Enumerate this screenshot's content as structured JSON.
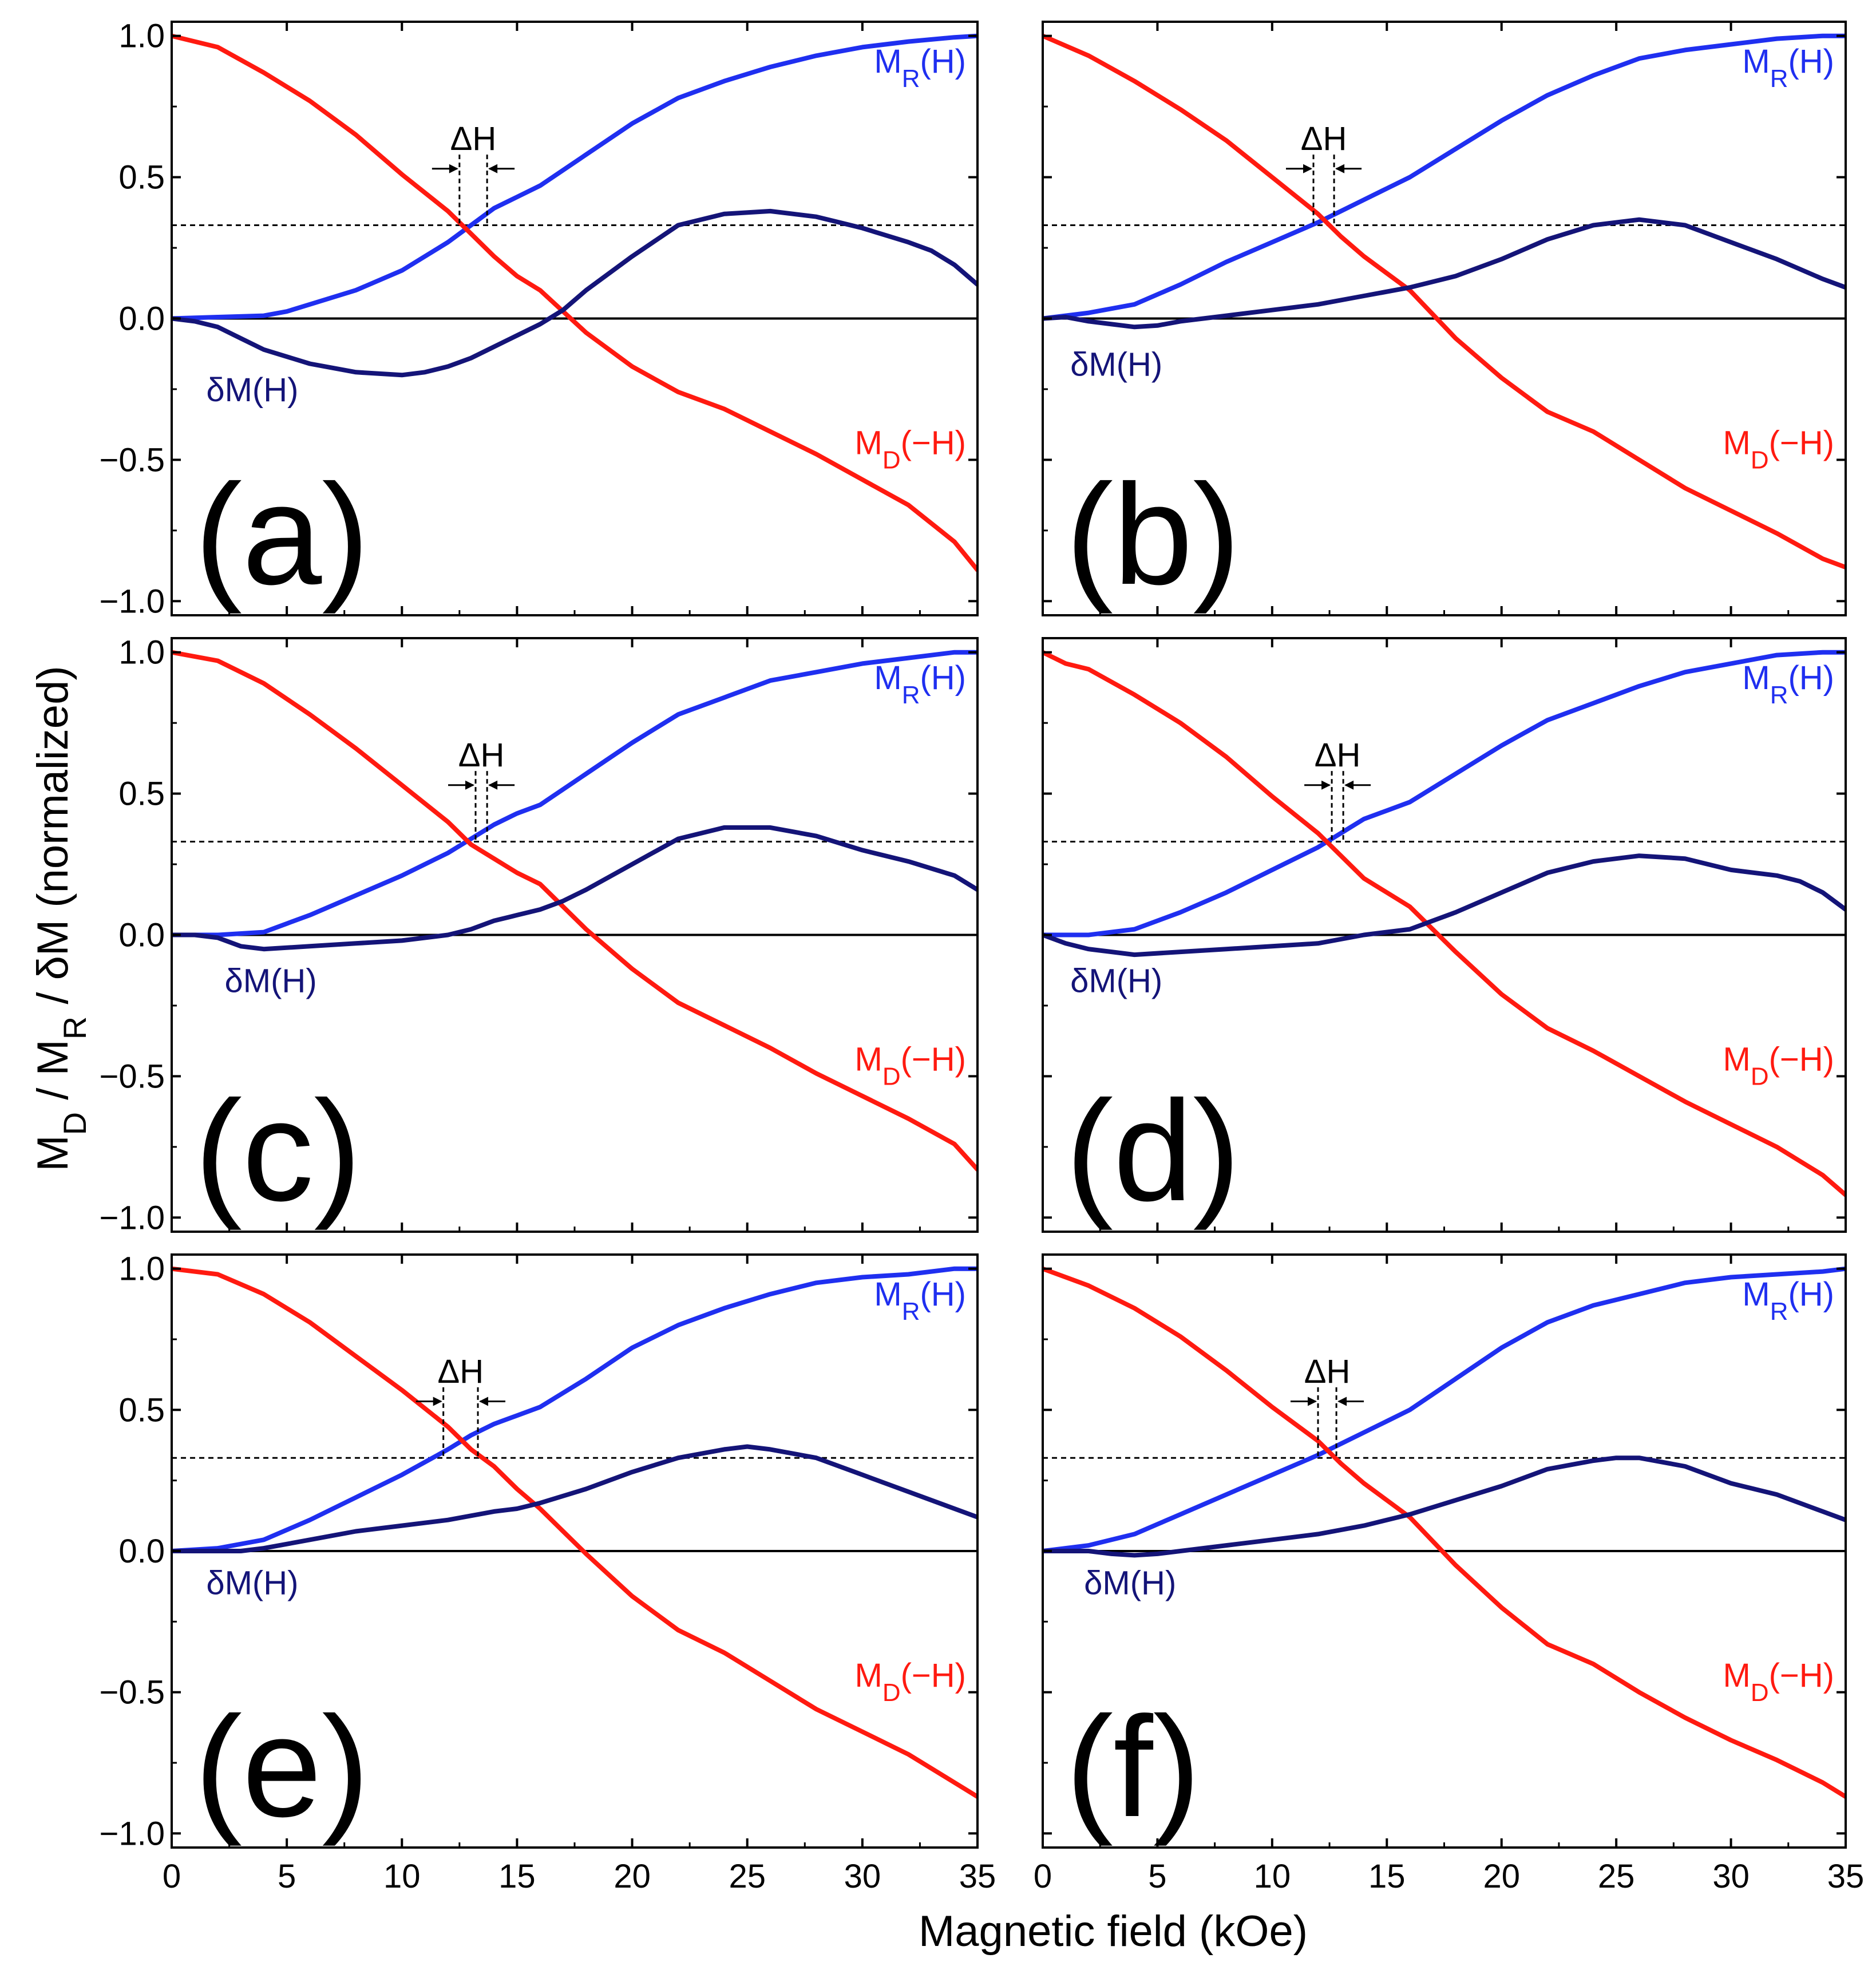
{
  "colors": {
    "mr": "#1f2ff0",
    "md": "#ff1a10",
    "dm": "#141478",
    "axis": "#000000"
  },
  "labels": {
    "xlabel": "Magnetic field (kOe)",
    "ylabel": "M_D / M_R / δM (normalized)",
    "delta_h": "ΔH",
    "mr_main": "M",
    "mr_sub": "R",
    "mr_tail": "(H)",
    "md_main": "M",
    "md_sub": "D",
    "md_tail": "(−H)",
    "dm": "δM(H)"
  },
  "chart_data": [
    {
      "panel": "(a)",
      "type": "line",
      "xlim": [
        0,
        35
      ],
      "ylim": [
        -1.05,
        1.05
      ],
      "xticks": [
        "0",
        "5",
        "10",
        "15",
        "20",
        "25",
        "30",
        "35"
      ],
      "yticks": [
        "1.0",
        "0.5",
        "0.0",
        "−0.5",
        "−1.0"
      ],
      "ytick_values": [
        1.0,
        0.5,
        0.0,
        -0.5,
        -1.0
      ],
      "xtick_values": [
        0,
        5,
        10,
        15,
        20,
        25,
        30,
        35
      ],
      "reference_line": 0.33,
      "delta_h": [
        12.5,
        13.7
      ],
      "series": [
        {
          "name": "M_R(H)",
          "x": [
            0,
            2,
            4,
            5,
            6,
            8,
            10,
            12,
            13,
            14,
            15,
            16,
            18,
            20,
            22,
            24,
            26,
            28,
            30,
            32,
            34,
            35
          ],
          "y": [
            0.0,
            0.005,
            0.01,
            0.025,
            0.05,
            0.1,
            0.17,
            0.27,
            0.33,
            0.39,
            0.43,
            0.47,
            0.58,
            0.69,
            0.78,
            0.84,
            0.89,
            0.93,
            0.96,
            0.98,
            0.995,
            1.0
          ]
        },
        {
          "name": "M_D(−H)",
          "x": [
            0,
            2,
            4,
            6,
            8,
            10,
            12,
            13,
            14,
            15,
            16,
            18,
            20,
            22,
            24,
            26,
            28,
            30,
            32,
            34,
            35
          ],
          "y": [
            1.0,
            0.96,
            0.87,
            0.77,
            0.65,
            0.51,
            0.38,
            0.3,
            0.22,
            0.15,
            0.1,
            -0.05,
            -0.17,
            -0.26,
            -0.32,
            -0.4,
            -0.48,
            -0.57,
            -0.66,
            -0.79,
            -0.89
          ]
        },
        {
          "name": "δM(H)",
          "x": [
            0,
            1,
            2,
            3,
            4,
            6,
            8,
            10,
            11,
            12,
            13,
            14,
            15,
            16,
            17,
            18,
            20,
            22,
            24,
            26,
            28,
            30,
            32,
            33,
            34,
            35
          ],
          "y": [
            0.0,
            -0.01,
            -0.03,
            -0.07,
            -0.11,
            -0.16,
            -0.19,
            -0.2,
            -0.19,
            -0.17,
            -0.14,
            -0.1,
            -0.06,
            -0.02,
            0.03,
            0.1,
            0.22,
            0.33,
            0.37,
            0.38,
            0.36,
            0.32,
            0.27,
            0.24,
            0.19,
            0.12
          ]
        }
      ]
    },
    {
      "panel": "(b)",
      "type": "line",
      "xlim": [
        0,
        35
      ],
      "ylim": [
        -1.05,
        1.05
      ],
      "xticks": [
        "0",
        "5",
        "10",
        "15",
        "20",
        "25",
        "30",
        "35"
      ],
      "yticks": [],
      "ytick_values": [
        1.0,
        0.5,
        0.0,
        -0.5,
        -1.0
      ],
      "xtick_values": [
        0,
        5,
        10,
        15,
        20,
        25,
        30,
        35
      ],
      "reference_line": 0.33,
      "delta_h": [
        11.8,
        12.7
      ],
      "series": [
        {
          "name": "M_R(H)",
          "x": [
            0,
            2,
            4,
            6,
            8,
            10,
            12,
            13,
            14,
            15,
            16,
            18,
            20,
            22,
            24,
            26,
            28,
            30,
            32,
            34,
            35
          ],
          "y": [
            0.0,
            0.02,
            0.05,
            0.12,
            0.2,
            0.27,
            0.34,
            0.38,
            0.42,
            0.46,
            0.5,
            0.6,
            0.7,
            0.79,
            0.86,
            0.92,
            0.95,
            0.97,
            0.99,
            1.0,
            1.0
          ]
        },
        {
          "name": "M_D(−H)",
          "x": [
            0,
            2,
            4,
            6,
            8,
            10,
            12,
            13,
            14,
            15,
            16,
            18,
            20,
            22,
            24,
            26,
            28,
            30,
            32,
            34,
            35
          ],
          "y": [
            1.0,
            0.93,
            0.84,
            0.74,
            0.63,
            0.5,
            0.37,
            0.29,
            0.22,
            0.16,
            0.1,
            -0.07,
            -0.21,
            -0.33,
            -0.4,
            -0.5,
            -0.6,
            -0.68,
            -0.76,
            -0.85,
            -0.88
          ]
        },
        {
          "name": "δM(H)",
          "x": [
            0,
            1,
            2,
            3,
            4,
            5,
            6,
            8,
            10,
            12,
            14,
            16,
            18,
            20,
            22,
            24,
            26,
            28,
            30,
            32,
            34,
            35
          ],
          "y": [
            0.0,
            0.005,
            -0.01,
            -0.02,
            -0.03,
            -0.025,
            -0.01,
            0.01,
            0.03,
            0.05,
            0.08,
            0.11,
            0.15,
            0.21,
            0.28,
            0.33,
            0.35,
            0.33,
            0.27,
            0.21,
            0.14,
            0.11
          ]
        }
      ]
    },
    {
      "panel": "(c)",
      "type": "line",
      "xlim": [
        0,
        35
      ],
      "ylim": [
        -1.05,
        1.05
      ],
      "xticks": [
        "0",
        "5",
        "10",
        "15",
        "20",
        "25",
        "30",
        "35"
      ],
      "yticks": [
        "1.0",
        "0.5",
        "0.0",
        "−0.5",
        "−1.0"
      ],
      "ytick_values": [
        1.0,
        0.5,
        0.0,
        -0.5,
        -1.0
      ],
      "xtick_values": [
        0,
        5,
        10,
        15,
        20,
        25,
        30,
        35
      ],
      "reference_line": 0.33,
      "delta_h": [
        13.2,
        13.7
      ],
      "series": [
        {
          "name": "M_R(H)",
          "x": [
            0,
            2,
            4,
            5,
            6,
            8,
            10,
            12,
            13,
            14,
            15,
            16,
            18,
            20,
            22,
            24,
            26,
            28,
            30,
            32,
            34,
            35
          ],
          "y": [
            0.0,
            0.0,
            0.01,
            0.04,
            0.07,
            0.14,
            0.21,
            0.29,
            0.34,
            0.39,
            0.43,
            0.46,
            0.57,
            0.68,
            0.78,
            0.84,
            0.9,
            0.93,
            0.96,
            0.98,
            1.0,
            1.0
          ]
        },
        {
          "name": "M_D(−H)",
          "x": [
            0,
            2,
            4,
            6,
            8,
            10,
            12,
            13,
            14,
            15,
            16,
            18,
            20,
            22,
            24,
            26,
            28,
            30,
            32,
            34,
            35
          ],
          "y": [
            1.0,
            0.97,
            0.89,
            0.78,
            0.66,
            0.53,
            0.4,
            0.32,
            0.27,
            0.22,
            0.18,
            0.02,
            -0.12,
            -0.24,
            -0.32,
            -0.4,
            -0.49,
            -0.57,
            -0.65,
            -0.74,
            -0.83
          ]
        },
        {
          "name": "δM(H)",
          "x": [
            0,
            1,
            2,
            3,
            4,
            6,
            8,
            10,
            12,
            13,
            14,
            15,
            16,
            17,
            18,
            20,
            22,
            24,
            26,
            28,
            30,
            32,
            34,
            35
          ],
          "y": [
            0.0,
            0.0,
            -0.01,
            -0.04,
            -0.05,
            -0.04,
            -0.03,
            -0.02,
            0.0,
            0.02,
            0.05,
            0.07,
            0.09,
            0.12,
            0.16,
            0.25,
            0.34,
            0.38,
            0.38,
            0.35,
            0.3,
            0.26,
            0.21,
            0.16
          ]
        }
      ]
    },
    {
      "panel": "(d)",
      "type": "line",
      "xlim": [
        0,
        35
      ],
      "ylim": [
        -1.05,
        1.05
      ],
      "xticks": [
        "0",
        "5",
        "10",
        "15",
        "20",
        "25",
        "30",
        "35"
      ],
      "yticks": [],
      "ytick_values": [
        1.0,
        0.5,
        0.0,
        -0.5,
        -1.0
      ],
      "xtick_values": [
        0,
        5,
        10,
        15,
        20,
        25,
        30,
        35
      ],
      "reference_line": 0.33,
      "delta_h": [
        12.6,
        13.1
      ],
      "series": [
        {
          "name": "M_R(H)",
          "x": [
            0,
            2,
            4,
            6,
            8,
            10,
            12,
            13,
            14,
            15,
            16,
            18,
            20,
            22,
            24,
            26,
            28,
            30,
            32,
            34,
            35
          ],
          "y": [
            0.0,
            0.0,
            0.02,
            0.08,
            0.15,
            0.23,
            0.31,
            0.36,
            0.41,
            0.44,
            0.47,
            0.57,
            0.67,
            0.76,
            0.82,
            0.88,
            0.93,
            0.96,
            0.99,
            1.0,
            1.0
          ]
        },
        {
          "name": "M_D(−H)",
          "x": [
            0,
            1,
            2,
            4,
            6,
            8,
            10,
            12,
            13,
            14,
            15,
            16,
            18,
            20,
            22,
            24,
            26,
            28,
            30,
            32,
            34,
            35
          ],
          "y": [
            1.0,
            0.96,
            0.94,
            0.85,
            0.75,
            0.63,
            0.49,
            0.36,
            0.28,
            0.2,
            0.15,
            0.1,
            -0.06,
            -0.21,
            -0.33,
            -0.41,
            -0.5,
            -0.59,
            -0.67,
            -0.75,
            -0.85,
            -0.92
          ]
        },
        {
          "name": "δM(H)",
          "x": [
            0,
            1,
            2,
            3,
            4,
            6,
            8,
            10,
            12,
            14,
            16,
            17,
            18,
            20,
            22,
            24,
            26,
            28,
            30,
            32,
            33,
            34,
            35
          ],
          "y": [
            0.0,
            -0.03,
            -0.05,
            -0.06,
            -0.07,
            -0.06,
            -0.05,
            -0.04,
            -0.03,
            0.0,
            0.02,
            0.05,
            0.08,
            0.15,
            0.22,
            0.26,
            0.28,
            0.27,
            0.23,
            0.21,
            0.19,
            0.15,
            0.09
          ]
        }
      ]
    },
    {
      "panel": "(e)",
      "type": "line",
      "xlim": [
        0,
        35
      ],
      "ylim": [
        -1.05,
        1.05
      ],
      "xticks": [
        "0",
        "5",
        "10",
        "15",
        "20",
        "25",
        "30",
        "35"
      ],
      "yticks": [
        "1.0",
        "0.5",
        "0.0",
        "−0.5",
        "−1.0"
      ],
      "ytick_values": [
        1.0,
        0.5,
        0.0,
        -0.5,
        -1.0
      ],
      "xtick_values": [
        0,
        5,
        10,
        15,
        20,
        25,
        30,
        35
      ],
      "reference_line": 0.33,
      "delta_h": [
        11.8,
        13.3
      ],
      "series": [
        {
          "name": "M_R(H)",
          "x": [
            0,
            2,
            4,
            6,
            8,
            10,
            12,
            13,
            14,
            15,
            16,
            18,
            20,
            22,
            24,
            26,
            28,
            30,
            32,
            34,
            35
          ],
          "y": [
            0.0,
            0.01,
            0.04,
            0.11,
            0.19,
            0.27,
            0.36,
            0.41,
            0.45,
            0.48,
            0.51,
            0.61,
            0.72,
            0.8,
            0.86,
            0.91,
            0.95,
            0.97,
            0.98,
            1.0,
            1.0
          ]
        },
        {
          "name": "M_D(−H)",
          "x": [
            0,
            2,
            4,
            6,
            8,
            10,
            12,
            13,
            14,
            15,
            16,
            17,
            18,
            20,
            22,
            24,
            26,
            28,
            30,
            32,
            34,
            35
          ],
          "y": [
            1.0,
            0.98,
            0.91,
            0.81,
            0.69,
            0.57,
            0.44,
            0.36,
            0.3,
            0.22,
            0.15,
            0.07,
            -0.01,
            -0.16,
            -0.28,
            -0.36,
            -0.46,
            -0.56,
            -0.64,
            -0.72,
            -0.82,
            -0.87
          ]
        },
        {
          "name": "δM(H)",
          "x": [
            0,
            2,
            3,
            4,
            6,
            8,
            10,
            12,
            14,
            15,
            16,
            18,
            20,
            22,
            24,
            25,
            26,
            28,
            30,
            32,
            34,
            35
          ],
          "y": [
            0.0,
            0.0,
            0.0,
            0.01,
            0.04,
            0.07,
            0.09,
            0.11,
            0.14,
            0.15,
            0.17,
            0.22,
            0.28,
            0.33,
            0.36,
            0.37,
            0.36,
            0.33,
            0.27,
            0.21,
            0.15,
            0.12
          ]
        }
      ]
    },
    {
      "panel": "(f)",
      "type": "line",
      "xlim": [
        0,
        35
      ],
      "ylim": [
        -1.05,
        1.05
      ],
      "xticks": [
        "0",
        "5",
        "10",
        "15",
        "20",
        "25",
        "30",
        "35"
      ],
      "yticks": [],
      "ytick_values": [
        1.0,
        0.5,
        0.0,
        -0.5,
        -1.0
      ],
      "xtick_values": [
        0,
        5,
        10,
        15,
        20,
        25,
        30,
        35
      ],
      "reference_line": 0.33,
      "delta_h": [
        12.0,
        12.8
      ],
      "series": [
        {
          "name": "M_R(H)",
          "x": [
            0,
            2,
            4,
            6,
            8,
            10,
            12,
            13,
            14,
            15,
            16,
            18,
            20,
            22,
            24,
            26,
            28,
            30,
            32,
            34,
            35
          ],
          "y": [
            0.0,
            0.02,
            0.06,
            0.13,
            0.2,
            0.27,
            0.34,
            0.38,
            0.42,
            0.46,
            0.5,
            0.61,
            0.72,
            0.81,
            0.87,
            0.91,
            0.95,
            0.97,
            0.98,
            0.99,
            1.0
          ]
        },
        {
          "name": "M_D(−H)",
          "x": [
            0,
            2,
            4,
            6,
            8,
            10,
            12,
            13,
            14,
            15,
            16,
            18,
            20,
            22,
            24,
            26,
            28,
            30,
            32,
            34,
            35
          ],
          "y": [
            1.0,
            0.94,
            0.86,
            0.76,
            0.64,
            0.51,
            0.39,
            0.31,
            0.24,
            0.18,
            0.12,
            -0.05,
            -0.2,
            -0.33,
            -0.4,
            -0.5,
            -0.59,
            -0.67,
            -0.74,
            -0.82,
            -0.87
          ]
        },
        {
          "name": "δM(H)",
          "x": [
            0,
            2,
            3,
            4,
            5,
            6,
            8,
            10,
            12,
            14,
            16,
            18,
            20,
            22,
            24,
            25,
            26,
            28,
            30,
            32,
            34,
            35
          ],
          "y": [
            0.0,
            0.0,
            -0.01,
            -0.015,
            -0.01,
            0.0,
            0.02,
            0.04,
            0.06,
            0.09,
            0.13,
            0.18,
            0.23,
            0.29,
            0.32,
            0.33,
            0.33,
            0.3,
            0.24,
            0.2,
            0.14,
            0.11
          ]
        }
      ]
    }
  ]
}
